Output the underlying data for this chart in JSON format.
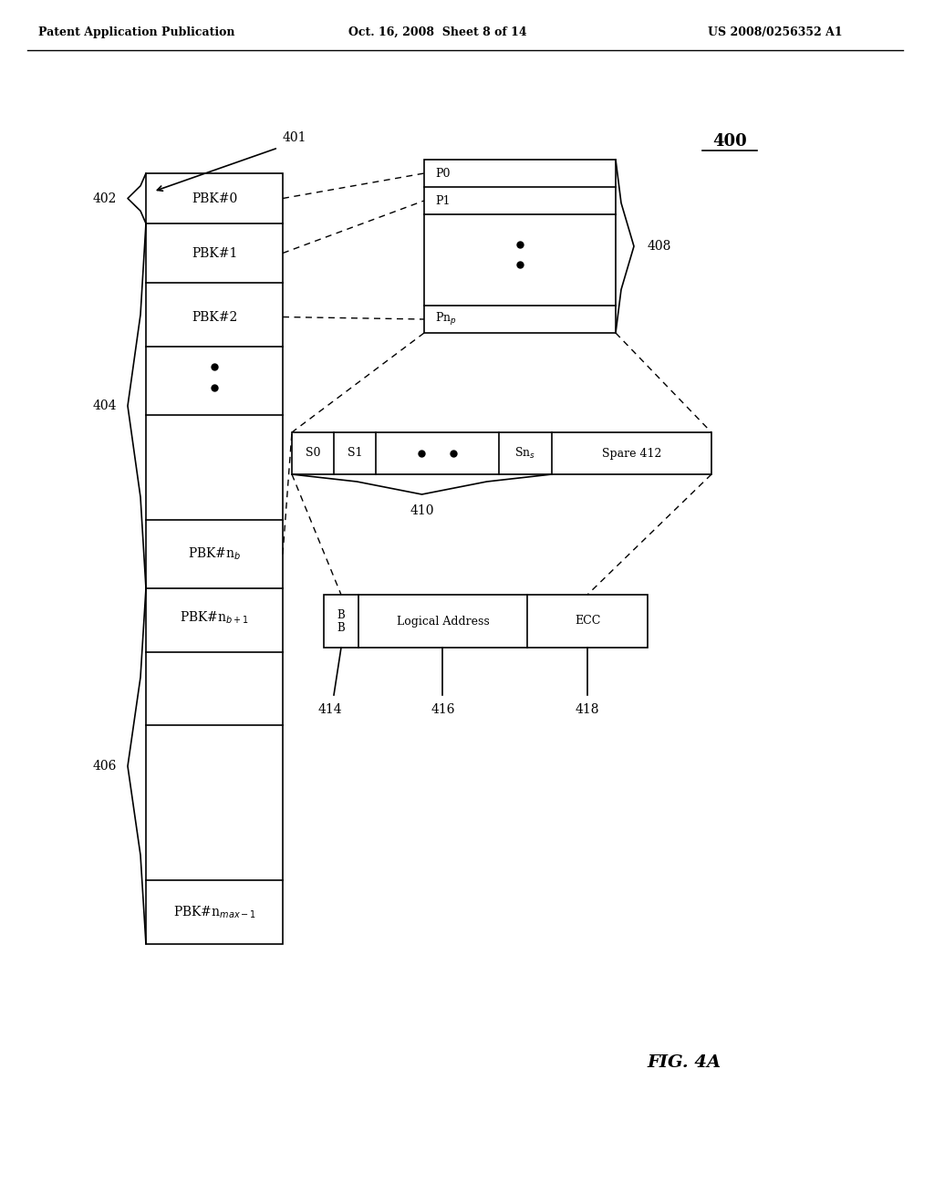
{
  "header_left": "Patent Application Publication",
  "header_mid": "Oct. 16, 2008  Sheet 8 of 14",
  "header_right": "US 2008/0256352 A1",
  "fig_label": "FIG. 4A",
  "fig_number": "400",
  "ref_401": "401",
  "ref_402": "402",
  "ref_404": "404",
  "ref_406": "406",
  "ref_408": "408",
  "ref_410": "410",
  "ref_414": "414",
  "ref_416": "416",
  "ref_418": "418",
  "logical_addr": "Logical Address",
  "ecc_label": "ECC",
  "background": "#ffffff",
  "line_color": "#000000"
}
